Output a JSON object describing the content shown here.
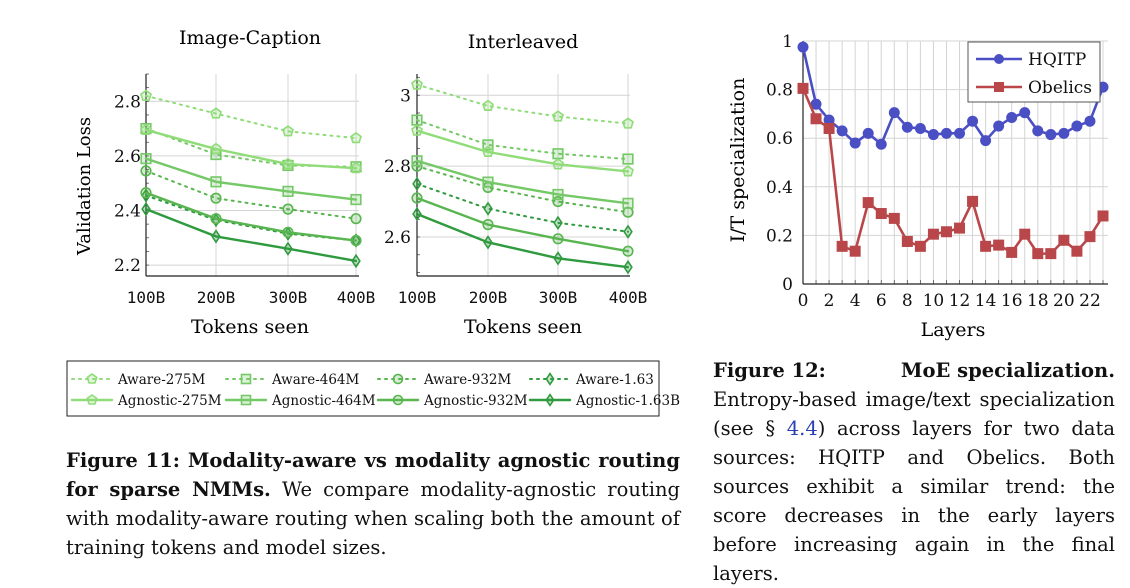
{
  "figure11": {
    "chart_data": [
      {
        "type": "line",
        "title": "Image-Caption",
        "xlabel": "Tokens seen",
        "ylabel": "Validation Loss",
        "x": [
          "100B",
          "200B",
          "300B",
          "400B"
        ],
        "ylim": [
          2.16,
          2.9
        ],
        "yticks": [
          "2.2",
          "2.4",
          "2.6",
          "2.8"
        ],
        "grid": true,
        "series": [
          {
            "name": "Aware-275M",
            "values": [
              2.82,
              2.755,
              2.69,
              2.665
            ]
          },
          {
            "name": "Aware-464M",
            "values": [
              2.7,
              2.605,
              2.565,
              2.56
            ]
          },
          {
            "name": "Aware-932M",
            "values": [
              2.545,
              2.445,
              2.405,
              2.37
            ]
          },
          {
            "name": "Aware-1.63",
            "values": [
              2.455,
              2.365,
              2.315,
              2.29
            ]
          },
          {
            "name": "Agnostic-275M",
            "values": [
              2.695,
              2.625,
              2.57,
              2.555
            ]
          },
          {
            "name": "Agnostic-464M",
            "values": [
              2.59,
              2.505,
              2.47,
              2.44
            ]
          },
          {
            "name": "Agnostic-932M",
            "values": [
              2.465,
              2.37,
              2.32,
              2.29
            ]
          },
          {
            "name": "Agnostic-1.63B",
            "values": [
              2.405,
              2.305,
              2.26,
              2.215
            ]
          }
        ]
      },
      {
        "type": "line",
        "title": "Interleaved",
        "xlabel": "Tokens seen",
        "ylabel": "",
        "x": [
          "100B",
          "200B",
          "300B",
          "400B"
        ],
        "ylim": [
          2.49,
          3.06
        ],
        "yticks": [
          "2.6",
          "2.8",
          "3"
        ],
        "grid": true,
        "series": [
          {
            "name": "Aware-275M",
            "values": [
              3.03,
              2.97,
              2.94,
              2.92
            ]
          },
          {
            "name": "Aware-464M",
            "values": [
              2.93,
              2.86,
              2.835,
              2.82
            ]
          },
          {
            "name": "Aware-932M",
            "values": [
              2.8,
              2.74,
              2.7,
              2.67
            ]
          },
          {
            "name": "Aware-1.63",
            "values": [
              2.75,
              2.68,
              2.64,
              2.615
            ]
          },
          {
            "name": "Agnostic-275M",
            "values": [
              2.9,
              2.84,
              2.805,
              2.785
            ]
          },
          {
            "name": "Agnostic-464M",
            "values": [
              2.815,
              2.755,
              2.72,
              2.695
            ]
          },
          {
            "name": "Agnostic-932M",
            "values": [
              2.71,
              2.635,
              2.595,
              2.56
            ]
          },
          {
            "name": "Agnostic-1.63B",
            "values": [
              2.665,
              2.585,
              2.54,
              2.515
            ]
          }
        ]
      }
    ],
    "legend": {
      "placement": "bottom",
      "entries": [
        {
          "label": "Aware-275M",
          "marker": "pentagon",
          "style": "dotted",
          "color": "#8fdc78"
        },
        {
          "label": "Aware-464M",
          "marker": "square",
          "style": "dotted",
          "color": "#74c866"
        },
        {
          "label": "Aware-932M",
          "marker": "circle",
          "style": "dotted",
          "color": "#58b54f"
        },
        {
          "label": "Aware-1.63",
          "marker": "diamond",
          "style": "dotted",
          "color": "#2f9a3e"
        },
        {
          "label": "Agnostic-275M",
          "marker": "pentagon",
          "style": "solid",
          "color": "#8fdc78"
        },
        {
          "label": "Agnostic-464M",
          "marker": "square",
          "style": "solid",
          "color": "#74c866"
        },
        {
          "label": "Agnostic-932M",
          "marker": "circle",
          "style": "solid",
          "color": "#58b54f"
        },
        {
          "label": "Agnostic-1.63B",
          "marker": "diamond",
          "style": "solid",
          "color": "#2f9a3e"
        }
      ]
    },
    "caption": {
      "label": "Figure 11: Modality-aware vs modality agnostic routing for sparse NMMs.",
      "text": "We compare modality-agnostic routing with modality-aware routing when scaling both the amount of training tokens and model sizes."
    }
  },
  "figure12": {
    "chart_data": {
      "type": "line",
      "title": "",
      "xlabel": "Layers",
      "ylabel": "I/T specialization",
      "x": [
        0,
        1,
        2,
        3,
        4,
        5,
        6,
        7,
        8,
        9,
        10,
        11,
        12,
        13,
        14,
        15,
        16,
        17,
        18,
        19,
        20,
        21,
        22,
        23
      ],
      "xticks": [
        "0",
        "2",
        "4",
        "6",
        "8",
        "10",
        "12",
        "14",
        "16",
        "18",
        "20",
        "22"
      ],
      "ylim": [
        0,
        1
      ],
      "yticks": [
        "0",
        "0.2",
        "0.4",
        "0.6",
        "0.8",
        "1"
      ],
      "grid": true,
      "legend_placement": "top-right",
      "series": [
        {
          "name": "HQITP",
          "color": "#4a4fc4",
          "marker": "circle",
          "values": [
            0.975,
            0.74,
            0.675,
            0.63,
            0.58,
            0.62,
            0.575,
            0.705,
            0.645,
            0.64,
            0.615,
            0.62,
            0.62,
            0.67,
            0.59,
            0.65,
            0.685,
            0.705,
            0.63,
            0.615,
            0.62,
            0.65,
            0.67,
            0.81
          ]
        },
        {
          "name": "Obelics",
          "color": "#b9474a",
          "marker": "square",
          "values": [
            0.805,
            0.68,
            0.64,
            0.155,
            0.135,
            0.335,
            0.29,
            0.27,
            0.175,
            0.155,
            0.205,
            0.215,
            0.23,
            0.34,
            0.155,
            0.16,
            0.13,
            0.205,
            0.125,
            0.125,
            0.18,
            0.135,
            0.195,
            0.28
          ]
        }
      ]
    },
    "caption": {
      "label_num": "Figure 12:",
      "label_title": "MoE specialization.",
      "text_before_ref": "Entropy-based image/text specialization (see §",
      "ref": "4.4",
      "text_after_ref": ") across layers for two data sources: HQITP and Obelics. Both sources exhibit a similar trend: the score decreases in the early layers before increasing again in the final layers."
    }
  }
}
